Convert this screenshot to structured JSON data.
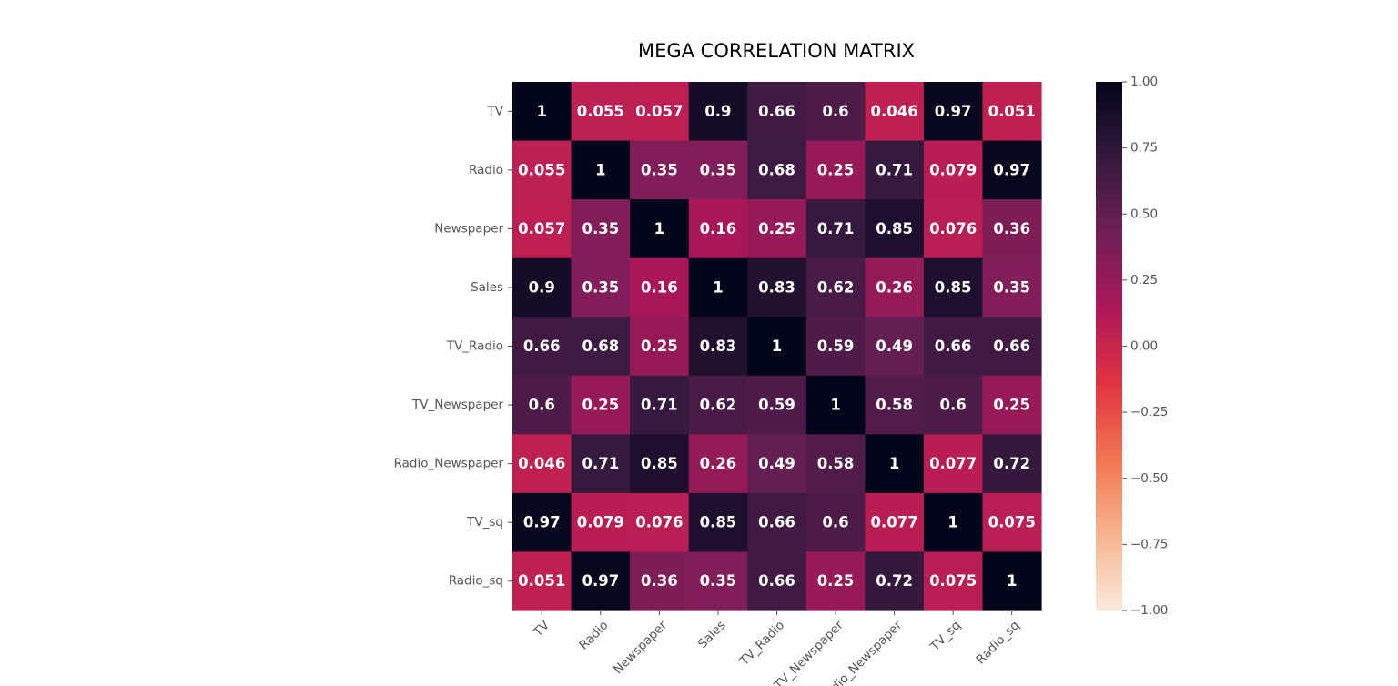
{
  "chart_data": {
    "type": "heatmap",
    "title": "MEGA CORRELATION MATRIX",
    "rows": [
      "TV",
      "Radio",
      "Newspaper",
      "Sales",
      "TV_Radio",
      "TV_Newspaper",
      "Radio_Newspaper",
      "TV_sq",
      "Radio_sq"
    ],
    "columns": [
      "TV",
      "Radio",
      "Newspaper",
      "Sales",
      "TV_Radio",
      "TV_Newspaper",
      "Radio_Newspaper",
      "TV_sq",
      "Radio_sq"
    ],
    "values": [
      [
        1,
        0.055,
        0.057,
        0.9,
        0.66,
        0.6,
        0.046,
        0.97,
        0.051
      ],
      [
        0.055,
        1,
        0.35,
        0.35,
        0.68,
        0.25,
        0.71,
        0.079,
        0.97
      ],
      [
        0.057,
        0.35,
        1,
        0.16,
        0.25,
        0.71,
        0.85,
        0.076,
        0.36
      ],
      [
        0.9,
        0.35,
        0.16,
        1,
        0.83,
        0.62,
        0.26,
        0.85,
        0.35
      ],
      [
        0.66,
        0.68,
        0.25,
        0.83,
        1,
        0.59,
        0.49,
        0.66,
        0.66
      ],
      [
        0.6,
        0.25,
        0.71,
        0.62,
        0.59,
        1,
        0.58,
        0.6,
        0.25
      ],
      [
        0.046,
        0.71,
        0.85,
        0.26,
        0.49,
        0.58,
        1,
        0.077,
        0.72
      ],
      [
        0.97,
        0.079,
        0.076,
        0.85,
        0.66,
        0.6,
        0.077,
        1,
        0.075
      ],
      [
        0.051,
        0.97,
        0.36,
        0.35,
        0.66,
        0.25,
        0.72,
        0.075,
        1
      ]
    ],
    "annotations": [
      [
        "1",
        "0.055",
        "0.057",
        "0.9",
        "0.66",
        "0.6",
        "0.046",
        "0.97",
        "0.051"
      ],
      [
        "0.055",
        "1",
        "0.35",
        "0.35",
        "0.68",
        "0.25",
        "0.71",
        "0.079",
        "0.97"
      ],
      [
        "0.057",
        "0.35",
        "1",
        "0.16",
        "0.25",
        "0.71",
        "0.85",
        "0.076",
        "0.36"
      ],
      [
        "0.9",
        "0.35",
        "0.16",
        "1",
        "0.83",
        "0.62",
        "0.26",
        "0.85",
        "0.35"
      ],
      [
        "0.66",
        "0.68",
        "0.25",
        "0.83",
        "1",
        "0.59",
        "0.49",
        "0.66",
        "0.66"
      ],
      [
        "0.6",
        "0.25",
        "0.71",
        "0.62",
        "0.59",
        "1",
        "0.58",
        "0.6",
        "0.25"
      ],
      [
        "0.046",
        "0.71",
        "0.85",
        "0.26",
        "0.49",
        "0.58",
        "1",
        "0.077",
        "0.72"
      ],
      [
        "0.97",
        "0.079",
        "0.076",
        "0.85",
        "0.66",
        "0.6",
        "0.077",
        "1",
        "0.075"
      ],
      [
        "0.051",
        "0.97",
        "0.36",
        "0.35",
        "0.66",
        "0.25",
        "0.72",
        "0.075",
        "1"
      ]
    ],
    "vmin": -1,
    "vmax": 1,
    "colormap": "rocket_r",
    "colorbar": {
      "ticks": [
        1,
        0.75,
        0.5,
        0.25,
        0,
        -0.25,
        -0.5,
        -0.75,
        -1
      ],
      "tick_labels": [
        "1.00",
        "0.75",
        "0.50",
        "0.25",
        "0.00",
        "−0.25",
        "−0.50",
        "−0.75",
        "−1.00"
      ]
    },
    "colormap_stops": [
      "#faebdd",
      "#f6b48f",
      "#f37651",
      "#e13342",
      "#ad1759",
      "#701f57",
      "#35193e",
      "#03051a"
    ],
    "xlabel": "",
    "ylabel": "",
    "grid": false,
    "legend": "colorbar-right"
  }
}
